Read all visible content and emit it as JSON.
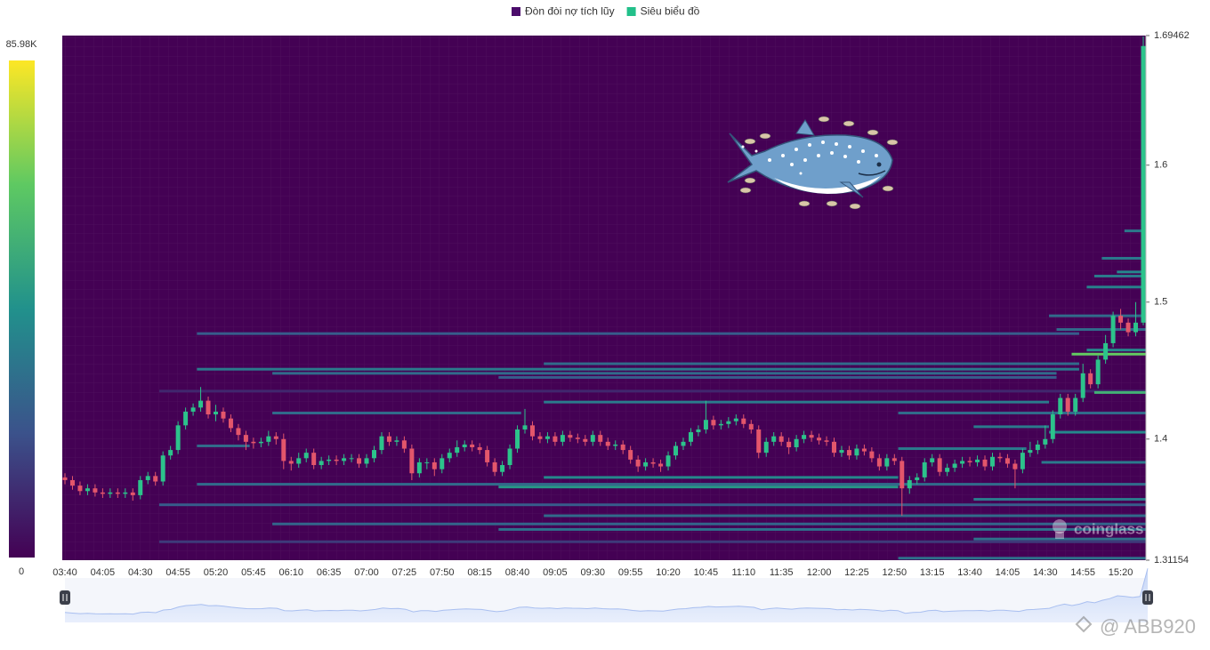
{
  "chart_data": {
    "type": "candlestick",
    "legend": [
      {
        "name": "Đòn đòi nợ tích lũy",
        "color": "#4b0c6b"
      },
      {
        "name": "Siêu biểu đồ",
        "color": "#22c08a"
      }
    ],
    "categories": [
      "03:40",
      "04:05",
      "04:30",
      "04:55",
      "05:20",
      "05:45",
      "06:10",
      "06:35",
      "07:00",
      "07:25",
      "07:50",
      "08:15",
      "08:40",
      "09:05",
      "09:30",
      "09:55",
      "10:20",
      "10:45",
      "11:10",
      "11:35",
      "12:00",
      "12:25",
      "12:50",
      "13:15",
      "13:40",
      "14:05",
      "14:30",
      "14:55",
      "15:20"
    ],
    "ylim": [
      1.31154,
      1.69462
    ],
    "yticks": [
      1.31154,
      1.4,
      1.5,
      1.6,
      1.69462
    ],
    "up_color": "#2cc38b",
    "down_color": "#e3566b",
    "candles": {
      "open": [
        1.372,
        1.37,
        1.366,
        1.362,
        1.364,
        1.361,
        1.36,
        1.361,
        1.36,
        1.361,
        1.359,
        1.37,
        1.373,
        1.369,
        1.388,
        1.392,
        1.41,
        1.42,
        1.423,
        1.428,
        1.418,
        1.42,
        1.415,
        1.408,
        1.403,
        1.398,
        1.397,
        1.398,
        1.402,
        1.4,
        1.384,
        1.382,
        1.386,
        1.39,
        1.381,
        1.384,
        1.385,
        1.384,
        1.386,
        1.386,
        1.382,
        1.386,
        1.392,
        1.402,
        1.398,
        1.399,
        1.393,
        1.375,
        1.383,
        1.383,
        1.378,
        1.386,
        1.39,
        1.394,
        1.396,
        1.394,
        1.392,
        1.383,
        1.376,
        1.381,
        1.393,
        1.407,
        1.41,
        1.402,
        1.4,
        1.402,
        1.398,
        1.403,
        1.401,
        1.4,
        1.398,
        1.403,
        1.398,
        1.395,
        1.396,
        1.392,
        1.385,
        1.38,
        1.383,
        1.382,
        1.38,
        1.388,
        1.395,
        1.398,
        1.405,
        1.407,
        1.414,
        1.41,
        1.411,
        1.413,
        1.415,
        1.411,
        1.407,
        1.39,
        1.398,
        1.402,
        1.398,
        1.394,
        1.4,
        1.403,
        1.401,
        1.399,
        1.398,
        1.39,
        1.392,
        1.388,
        1.393,
        1.391,
        1.386,
        1.38,
        1.386,
        1.384,
        1.364,
        1.37,
        1.372,
        1.383,
        1.386,
        1.376,
        1.379,
        1.382,
        1.384,
        1.383,
        1.385,
        1.38,
        1.387,
        1.386,
        1.382,
        1.378,
        1.39,
        1.392,
        1.396,
        1.4,
        1.418,
        1.43,
        1.42,
        1.43,
        1.448,
        1.44,
        1.458,
        1.47,
        1.49,
        1.485,
        1.478,
        1.485
      ],
      "high": [
        1.375,
        1.373,
        1.369,
        1.367,
        1.367,
        1.364,
        1.364,
        1.364,
        1.364,
        1.364,
        1.373,
        1.376,
        1.376,
        1.391,
        1.395,
        1.413,
        1.423,
        1.426,
        1.438,
        1.431,
        1.425,
        1.423,
        1.418,
        1.411,
        1.406,
        1.401,
        1.401,
        1.406,
        1.405,
        1.404,
        1.387,
        1.39,
        1.393,
        1.393,
        1.387,
        1.388,
        1.388,
        1.389,
        1.389,
        1.389,
        1.389,
        1.395,
        1.405,
        1.405,
        1.402,
        1.402,
        1.396,
        1.386,
        1.386,
        1.386,
        1.389,
        1.393,
        1.399,
        1.399,
        1.399,
        1.397,
        1.395,
        1.386,
        1.384,
        1.396,
        1.41,
        1.422,
        1.413,
        1.405,
        1.405,
        1.405,
        1.406,
        1.406,
        1.404,
        1.403,
        1.406,
        1.406,
        1.401,
        1.399,
        1.399,
        1.395,
        1.388,
        1.386,
        1.386,
        1.385,
        1.391,
        1.398,
        1.401,
        1.408,
        1.41,
        1.428,
        1.417,
        1.414,
        1.416,
        1.418,
        1.418,
        1.414,
        1.41,
        1.401,
        1.405,
        1.405,
        1.401,
        1.403,
        1.406,
        1.406,
        1.404,
        1.402,
        1.401,
        1.395,
        1.395,
        1.396,
        1.396,
        1.394,
        1.389,
        1.389,
        1.389,
        1.387,
        1.373,
        1.375,
        1.386,
        1.389,
        1.389,
        1.382,
        1.385,
        1.387,
        1.387,
        1.388,
        1.388,
        1.39,
        1.39,
        1.389,
        1.385,
        1.393,
        1.398,
        1.399,
        1.41,
        1.421,
        1.433,
        1.433,
        1.433,
        1.455,
        1.451,
        1.461,
        1.476,
        1.493,
        1.495,
        1.488,
        1.5,
        1.694
      ],
      "low": [
        1.367,
        1.363,
        1.359,
        1.359,
        1.358,
        1.357,
        1.357,
        1.357,
        1.357,
        1.355,
        1.356,
        1.367,
        1.366,
        1.366,
        1.385,
        1.389,
        1.407,
        1.417,
        1.42,
        1.415,
        1.413,
        1.412,
        1.405,
        1.399,
        1.392,
        1.393,
        1.394,
        1.395,
        1.396,
        1.378,
        1.377,
        1.379,
        1.383,
        1.378,
        1.378,
        1.381,
        1.381,
        1.381,
        1.383,
        1.379,
        1.379,
        1.383,
        1.389,
        1.395,
        1.395,
        1.39,
        1.37,
        1.372,
        1.378,
        1.373,
        1.375,
        1.383,
        1.387,
        1.391,
        1.391,
        1.389,
        1.38,
        1.373,
        1.373,
        1.378,
        1.39,
        1.404,
        1.399,
        1.397,
        1.397,
        1.395,
        1.395,
        1.398,
        1.397,
        1.395,
        1.395,
        1.395,
        1.392,
        1.392,
        1.389,
        1.382,
        1.376,
        1.377,
        1.379,
        1.376,
        1.377,
        1.385,
        1.392,
        1.395,
        1.402,
        1.404,
        1.407,
        1.407,
        1.408,
        1.41,
        1.408,
        1.404,
        1.386,
        1.387,
        1.395,
        1.395,
        1.389,
        1.391,
        1.397,
        1.398,
        1.396,
        1.395,
        1.387,
        1.387,
        1.385,
        1.385,
        1.388,
        1.383,
        1.377,
        1.377,
        1.381,
        1.344,
        1.36,
        1.367,
        1.369,
        1.38,
        1.373,
        1.373,
        1.376,
        1.379,
        1.38,
        1.38,
        1.377,
        1.377,
        1.383,
        1.379,
        1.364,
        1.375,
        1.387,
        1.389,
        1.393,
        1.397,
        1.415,
        1.417,
        1.417,
        1.427,
        1.437,
        1.437,
        1.455,
        1.467,
        1.48,
        1.475,
        1.475,
        1.483
      ],
      "close": [
        1.37,
        1.366,
        1.362,
        1.364,
        1.361,
        1.36,
        1.361,
        1.36,
        1.361,
        1.359,
        1.37,
        1.373,
        1.369,
        1.388,
        1.392,
        1.41,
        1.42,
        1.423,
        1.428,
        1.418,
        1.42,
        1.415,
        1.408,
        1.403,
        1.398,
        1.397,
        1.398,
        1.402,
        1.4,
        1.384,
        1.382,
        1.386,
        1.39,
        1.381,
        1.384,
        1.385,
        1.384,
        1.386,
        1.386,
        1.382,
        1.386,
        1.392,
        1.402,
        1.398,
        1.399,
        1.393,
        1.375,
        1.383,
        1.383,
        1.378,
        1.386,
        1.39,
        1.394,
        1.396,
        1.394,
        1.392,
        1.383,
        1.376,
        1.381,
        1.393,
        1.407,
        1.41,
        1.402,
        1.4,
        1.402,
        1.398,
        1.403,
        1.401,
        1.4,
        1.398,
        1.403,
        1.398,
        1.395,
        1.396,
        1.392,
        1.385,
        1.38,
        1.383,
        1.382,
        1.38,
        1.388,
        1.395,
        1.398,
        1.405,
        1.407,
        1.414,
        1.41,
        1.411,
        1.413,
        1.415,
        1.411,
        1.407,
        1.39,
        1.398,
        1.402,
        1.398,
        1.394,
        1.4,
        1.403,
        1.401,
        1.399,
        1.398,
        1.39,
        1.392,
        1.388,
        1.393,
        1.391,
        1.386,
        1.38,
        1.386,
        1.384,
        1.364,
        1.37,
        1.372,
        1.383,
        1.386,
        1.376,
        1.379,
        1.382,
        1.384,
        1.383,
        1.385,
        1.38,
        1.387,
        1.386,
        1.382,
        1.378,
        1.39,
        1.392,
        1.396,
        1.4,
        1.418,
        1.43,
        1.42,
        1.43,
        1.448,
        1.44,
        1.458,
        1.47,
        1.49,
        1.485,
        1.478,
        1.485,
        1.687
      ]
    },
    "heat": {
      "clim": [
        0,
        85.98
      ],
      "cticks": [
        0,
        {
          "value": 85.98,
          "label": "85.98K"
        }
      ],
      "bands": [
        {
          "price": 1.477,
          "start": 18,
          "end": 134,
          "value": 25
        },
        {
          "price": 1.451,
          "start": 18,
          "end": 134,
          "value": 35
        },
        {
          "price": 1.448,
          "start": 28,
          "end": 131,
          "value": 30
        },
        {
          "price": 1.455,
          "start": 64,
          "end": 134,
          "value": 30
        },
        {
          "price": 1.445,
          "start": 58,
          "end": 131,
          "value": 25
        },
        {
          "price": 1.435,
          "start": 13,
          "end": 143,
          "value": 10
        },
        {
          "price": 1.427,
          "start": 64,
          "end": 130,
          "value": 35
        },
        {
          "price": 1.419,
          "start": 28,
          "end": 60,
          "value": 30
        },
        {
          "price": 1.419,
          "start": 111,
          "end": 143,
          "value": 30
        },
        {
          "price": 1.409,
          "start": 121,
          "end": 130,
          "value": 35
        },
        {
          "price": 1.405,
          "start": 131,
          "end": 143,
          "value": 40
        },
        {
          "price": 1.395,
          "start": 18,
          "end": 24,
          "value": 30
        },
        {
          "price": 1.393,
          "start": 111,
          "end": 127,
          "value": 35
        },
        {
          "price": 1.383,
          "start": 130,
          "end": 143,
          "value": 35
        },
        {
          "price": 1.372,
          "start": 64,
          "end": 110,
          "value": 40
        },
        {
          "price": 1.367,
          "start": 18,
          "end": 143,
          "value": 30
        },
        {
          "price": 1.365,
          "start": 58,
          "end": 110,
          "value": 45
        },
        {
          "price": 1.356,
          "start": 121,
          "end": 143,
          "value": 35
        },
        {
          "price": 1.352,
          "start": 13,
          "end": 143,
          "value": 25
        },
        {
          "price": 1.344,
          "start": 64,
          "end": 143,
          "value": 30
        },
        {
          "price": 1.338,
          "start": 28,
          "end": 143,
          "value": 28
        },
        {
          "price": 1.334,
          "start": 58,
          "end": 143,
          "value": 32
        },
        {
          "price": 1.327,
          "start": 121,
          "end": 143,
          "value": 32
        },
        {
          "price": 1.325,
          "start": 13,
          "end": 143,
          "value": 15
        },
        {
          "price": 1.313,
          "start": 111,
          "end": 143,
          "value": 32
        },
        {
          "price": 1.552,
          "start": 141,
          "end": 143,
          "value": 35
        },
        {
          "price": 1.532,
          "start": 138,
          "end": 143,
          "value": 35
        },
        {
          "price": 1.522,
          "start": 140,
          "end": 143,
          "value": 40
        },
        {
          "price": 1.519,
          "start": 137,
          "end": 143,
          "value": 35
        },
        {
          "price": 1.511,
          "start": 136,
          "end": 143,
          "value": 38
        },
        {
          "price": 1.49,
          "start": 131,
          "end": 143,
          "value": 30
        },
        {
          "price": 1.48,
          "start": 132,
          "end": 143,
          "value": 30
        },
        {
          "price": 1.465,
          "start": 136,
          "end": 143,
          "value": 40
        },
        {
          "price": 1.462,
          "start": 134,
          "end": 143,
          "value": 65
        },
        {
          "price": 1.434,
          "start": 137,
          "end": 143,
          "value": 55
        }
      ]
    },
    "watermarks": [
      "coinglass",
      "@ ABB920"
    ]
  }
}
